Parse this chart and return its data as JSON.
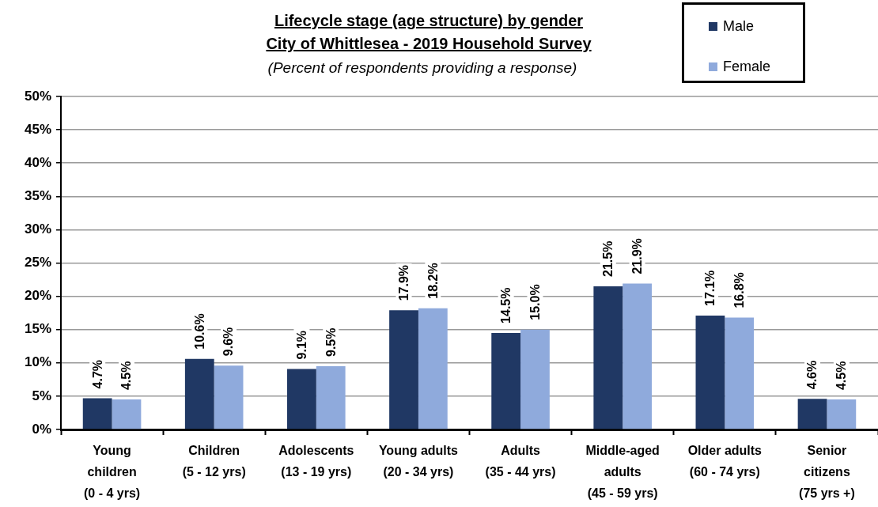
{
  "chart_data": {
    "type": "bar",
    "title": "Lifecycle stage (age structure) by gender\nCity of Whittlesea - 2019 Household Survey",
    "subtitle": "(Percent of respondents providing a response)",
    "categories": [
      "Young\nchildren\n(0 - 4 yrs)",
      "Children\n(5 - 12 yrs)",
      "Adolescents\n(13 - 19 yrs)",
      "Young adults\n(20 - 34 yrs)",
      "Adults\n(35 - 44 yrs)",
      "Middle-aged\nadults\n(45 - 59 yrs)",
      "Older adults\n(60 - 74 yrs)",
      "Senior\ncitizens\n(75 yrs +)"
    ],
    "series": [
      {
        "name": "Male",
        "color": "#203864",
        "values": [
          4.7,
          10.6,
          9.1,
          17.9,
          14.5,
          21.5,
          17.1,
          4.6
        ],
        "value_labels": [
          "4.7%",
          "10.6%",
          "9.1%",
          "17.9%",
          "14.5%",
          "21.5%",
          "17.1%",
          "4.6%"
        ]
      },
      {
        "name": "Female",
        "color": "#8faadc",
        "values": [
          4.5,
          9.6,
          9.5,
          18.2,
          15.0,
          21.9,
          16.8,
          4.5
        ],
        "value_labels": [
          "4.5%",
          "9.6%",
          "9.5%",
          "18.2%",
          "15.0%",
          "21.9%",
          "16.8%",
          "4.5%"
        ]
      }
    ],
    "ylim": [
      0,
      50
    ],
    "yticks": [
      {
        "value": 0,
        "label": "0%"
      },
      {
        "value": 5,
        "label": "5%"
      },
      {
        "value": 10,
        "label": "10%"
      },
      {
        "value": 15,
        "label": "15%"
      },
      {
        "value": 20,
        "label": "20%"
      },
      {
        "value": 25,
        "label": "25%"
      },
      {
        "value": 30,
        "label": "30%"
      },
      {
        "value": 35,
        "label": "35%"
      },
      {
        "value": 40,
        "label": "40%"
      },
      {
        "value": 45,
        "label": "45%"
      },
      {
        "value": 50,
        "label": "50%"
      }
    ],
    "grid": "y",
    "legend": "top right"
  }
}
